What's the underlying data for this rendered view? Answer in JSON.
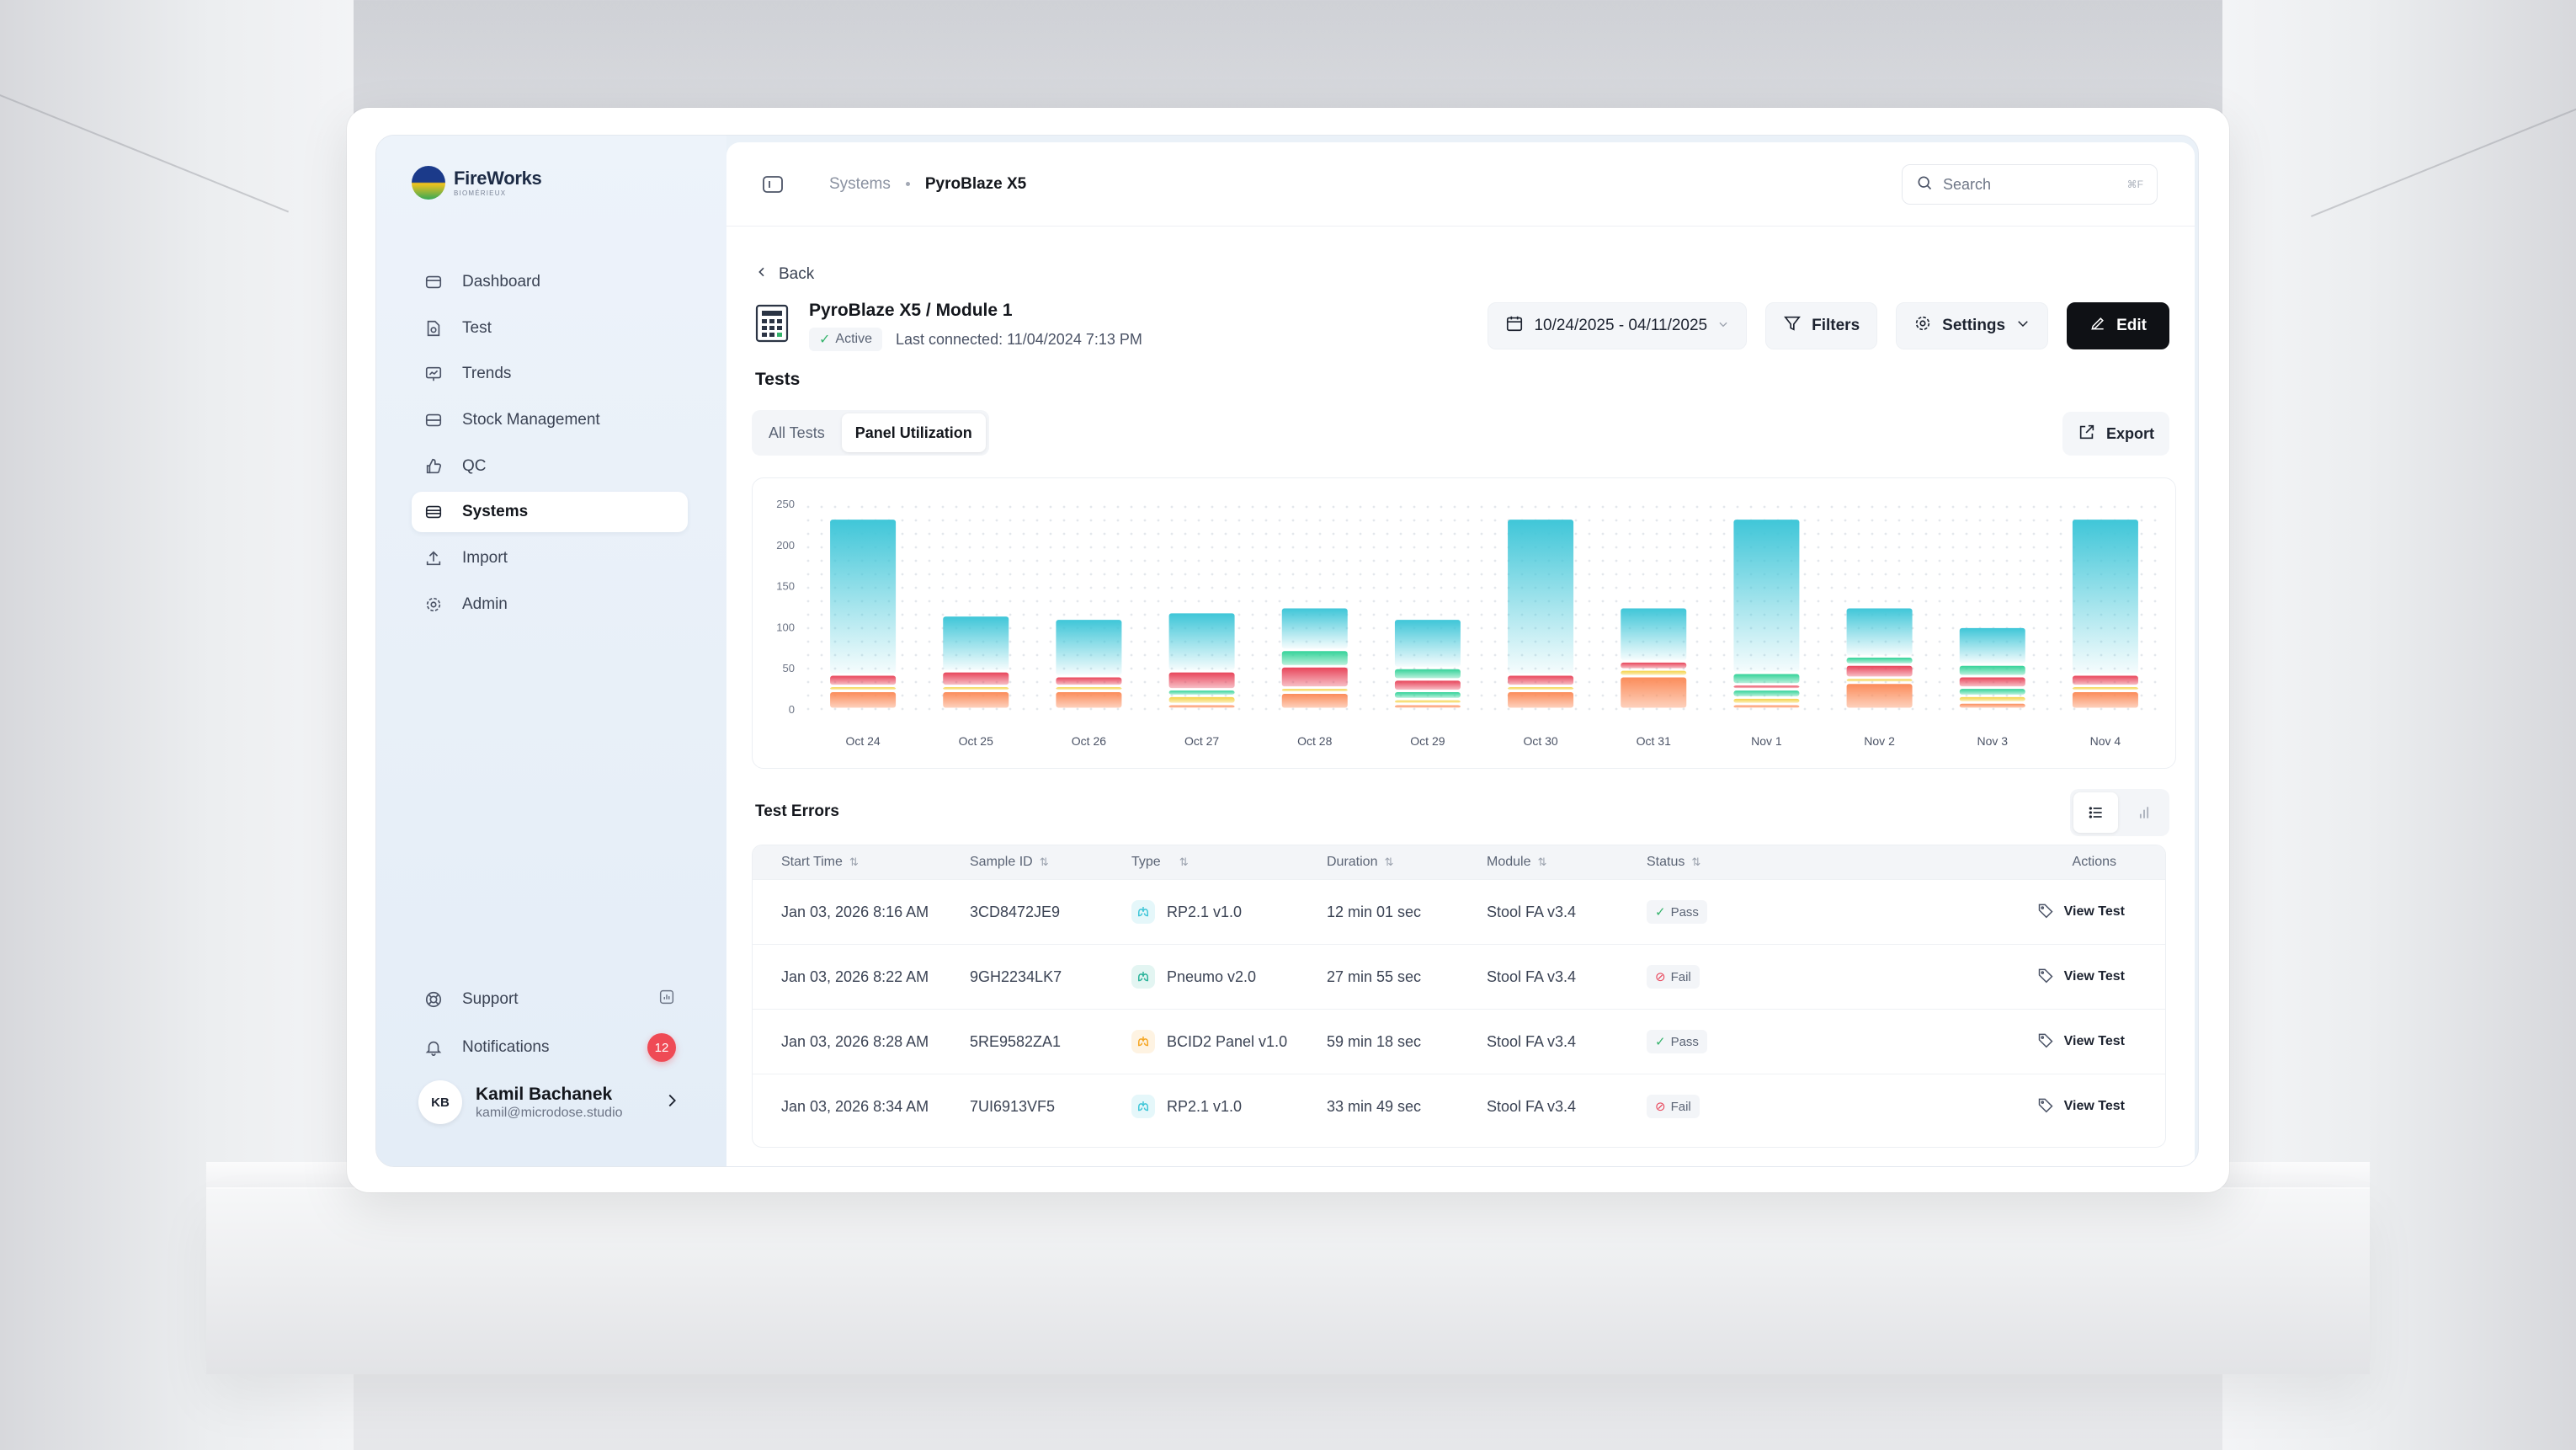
{
  "brand": {
    "name": "FireWorks",
    "sub": "BIOMÉRIEUX"
  },
  "sidebar": {
    "items": [
      {
        "label": "Dashboard",
        "icon": "dashboard-icon"
      },
      {
        "label": "Test",
        "icon": "test-icon"
      },
      {
        "label": "Trends",
        "icon": "trends-icon"
      },
      {
        "label": "Stock Management",
        "icon": "stock-icon"
      },
      {
        "label": "QC",
        "icon": "thumbs-up-icon"
      },
      {
        "label": "Systems",
        "icon": "systems-icon",
        "active": true
      },
      {
        "label": "Import",
        "icon": "upload-icon"
      },
      {
        "label": "Admin",
        "icon": "gear-icon"
      }
    ],
    "support_label": "Support",
    "notifications_label": "Notifications",
    "notifications_count": "12",
    "user": {
      "initials": "KB",
      "name": "Kamil Bachanek",
      "email": "kamil@microdose.studio"
    }
  },
  "topbar": {
    "breadcrumb": {
      "parent": "Systems",
      "current": "PyroBlaze X5"
    },
    "search_placeholder": "Search",
    "search_shortcut": "⌘F"
  },
  "page": {
    "back_label": "Back",
    "title": "PyroBlaze X5 / Module 1",
    "status": "Active",
    "last_connected": "Last connected: 11/04/2024 7:13 PM",
    "date_range": "10/24/2025 - 04/11/2025",
    "filters_label": "Filters",
    "settings_label": "Settings",
    "edit_label": "Edit",
    "tests_title": "Tests",
    "tabs": [
      "All Tests",
      "Panel Utilization"
    ],
    "active_tab": 1,
    "export_label": "Export",
    "errors_title": "Test Errors"
  },
  "colors": {
    "cyan": "#3fc6d8",
    "red": "#e8455a",
    "green": "#34d399",
    "yellow": "#f5d34a",
    "orange": "#fb8c5a"
  },
  "chart_data": {
    "type": "bar",
    "stacked": true,
    "categories": [
      "Oct 24",
      "Oct 25",
      "Oct 26",
      "Oct 27",
      "Oct 28",
      "Oct 29",
      "Oct 30",
      "Oct 31",
      "Nov 1",
      "Nov 2",
      "Nov 3",
      "Nov 4"
    ],
    "yticks": [
      0,
      50,
      100,
      150,
      200,
      250
    ],
    "ylim": [
      0,
      250
    ],
    "grid": "dotted",
    "series": [
      {
        "color": "#fb8c5a",
        "values": [
          22,
          22,
          22,
          6,
          20,
          6,
          22,
          40,
          6,
          32,
          8,
          22
        ]
      },
      {
        "color": "#f5d34a",
        "values": [
          6,
          6,
          6,
          10,
          6,
          6,
          6,
          8,
          8,
          6,
          8,
          6
        ]
      },
      {
        "color": "#34d399",
        "values": [
          0,
          0,
          0,
          8,
          0,
          10,
          0,
          0,
          10,
          0,
          10,
          0
        ]
      },
      {
        "color": "#e8455a",
        "values": [
          14,
          18,
          12,
          22,
          26,
          14,
          14,
          10,
          6,
          16,
          14,
          14
        ]
      },
      {
        "color": "#34d399",
        "values": [
          0,
          0,
          0,
          0,
          20,
          14,
          0,
          0,
          14,
          10,
          14,
          0
        ]
      },
      {
        "color": "#3fc6d8",
        "values": [
          190,
          68,
          70,
          72,
          52,
          60,
          190,
          66,
          188,
          60,
          46,
          190
        ]
      }
    ]
  },
  "table": {
    "columns": [
      "Start Time",
      "Sample ID",
      "Type",
      "Duration",
      "Module",
      "Status",
      "Actions"
    ],
    "rows": [
      {
        "start": "Jan 03, 2026 8:16 AM",
        "sample": "3CD8472JE9",
        "type": "RP2.1 v1.0",
        "type_icon": "lungs-icon",
        "type_color": "#3fc6d8",
        "duration": "12 min 01 sec",
        "module": "Stool FA v3.4",
        "status": "Pass",
        "action": "View Test"
      },
      {
        "start": "Jan 03, 2026 8:22 AM",
        "sample": "9GH2234LK7",
        "type": "Pneumo v2.0",
        "type_icon": "lungs-icon",
        "type_color": "#2bb39a",
        "duration": "27 min 55 sec",
        "module": "Stool FA v3.4",
        "status": "Fail",
        "action": "View Test"
      },
      {
        "start": "Jan 03, 2026 8:28 AM",
        "sample": "5RE9582ZA1",
        "type": "BCID2 Panel v1.0",
        "type_icon": "blood-icon",
        "type_color": "#f5a623",
        "duration": "59 min 18 sec",
        "module": "Stool FA v3.4",
        "status": "Pass",
        "action": "View Test"
      },
      {
        "start": "Jan 03, 2026 8:34 AM",
        "sample": "7UI6913VF5",
        "type": "RP2.1 v1.0",
        "type_icon": "lungs-icon",
        "type_color": "#3fc6d8",
        "duration": "33 min 49 sec",
        "module": "Stool FA v3.4",
        "status": "Fail",
        "action": "View Test"
      }
    ]
  }
}
